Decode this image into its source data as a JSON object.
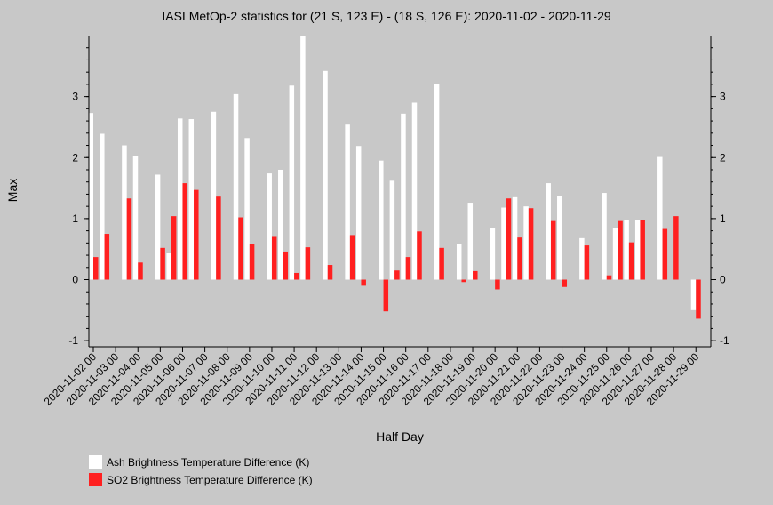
{
  "chart_data": {
    "type": "bar",
    "title": "IASI MetOp-2 statistics for (21 S, 123 E) - (18 S, 126 E): 2020-11-02 - 2020-11-29",
    "xlabel": "Half Day",
    "ylabel": "Max",
    "ylim": [
      -1.1,
      4.0
    ],
    "yticks": [
      -1,
      0,
      1,
      2,
      3
    ],
    "grid": false,
    "legend_position": "bottom-left",
    "categories": [
      "2020-11-02 00",
      "2020-11-02 12",
      "2020-11-03 00",
      "2020-11-03 12",
      "2020-11-04 00",
      "2020-11-04 12",
      "2020-11-05 00",
      "2020-11-05 12",
      "2020-11-06 00",
      "2020-11-06 12",
      "2020-11-07 00",
      "2020-11-07 12",
      "2020-11-08 00",
      "2020-11-08 12",
      "2020-11-09 00",
      "2020-11-09 12",
      "2020-11-10 00",
      "2020-11-10 12",
      "2020-11-11 00",
      "2020-11-11 12",
      "2020-11-12 00",
      "2020-11-12 12",
      "2020-11-13 00",
      "2020-11-13 12",
      "2020-11-14 00",
      "2020-11-14 12",
      "2020-11-15 00",
      "2020-11-15 12",
      "2020-11-16 00",
      "2020-11-16 12",
      "2020-11-17 00",
      "2020-11-17 12",
      "2020-11-18 00",
      "2020-11-18 12",
      "2020-11-19 00",
      "2020-11-19 12",
      "2020-11-20 00",
      "2020-11-20 12",
      "2020-11-21 00",
      "2020-11-21 12",
      "2020-11-22 00",
      "2020-11-22 12",
      "2020-11-23 00",
      "2020-11-23 12",
      "2020-11-24 00",
      "2020-11-24 12",
      "2020-11-25 00",
      "2020-11-25 12",
      "2020-11-26 00",
      "2020-11-26 12",
      "2020-11-27 00",
      "2020-11-27 12",
      "2020-11-28 00",
      "2020-11-28 12",
      "2020-11-29 00"
    ],
    "tick_labels": [
      "2020-11-02 00",
      "2020-11-03 00",
      "2020-11-04 00",
      "2020-11-05 00",
      "2020-11-06 00",
      "2020-11-07 00",
      "2020-11-08 00",
      "2020-11-09 00",
      "2020-11-10 00",
      "2020-11-11 00",
      "2020-11-12 00",
      "2020-11-13 00",
      "2020-11-14 00",
      "2020-11-15 00",
      "2020-11-16 00",
      "2020-11-17 00",
      "2020-11-18 00",
      "2020-11-19 00",
      "2020-11-20 00",
      "2020-11-21 00",
      "2020-11-22 00",
      "2020-11-23 00",
      "2020-11-24 00",
      "2020-11-25 00",
      "2020-11-26 00",
      "2020-11-27 00",
      "2020-11-28 00",
      "2020-11-29 00"
    ],
    "series": [
      {
        "name": "Ash Brightness Temperature Difference (K)",
        "color": "#ffffff",
        "values": [
          2.73,
          2.39,
          null,
          2.2,
          2.03,
          null,
          1.72,
          0.43,
          2.64,
          2.63,
          null,
          2.75,
          null,
          3.04,
          2.32,
          null,
          1.74,
          1.8,
          3.18,
          4.0,
          null,
          3.42,
          null,
          2.54,
          2.19,
          null,
          1.95,
          1.62,
          2.72,
          2.9,
          null,
          3.2,
          null,
          0.58,
          1.26,
          null,
          0.85,
          1.18,
          1.35,
          1.2,
          null,
          1.58,
          1.37,
          null,
          0.68,
          null,
          1.42,
          0.85,
          0.98,
          0.97,
          null,
          2.01,
          null,
          null,
          -0.5
        ]
      },
      {
        "name": "SO2 Brightness Temperature Difference (K)",
        "color": "#ff2020",
        "values": [
          0.37,
          0.75,
          null,
          1.33,
          0.28,
          null,
          0.52,
          1.04,
          1.58,
          1.47,
          null,
          1.36,
          null,
          1.02,
          0.59,
          null,
          0.7,
          0.46,
          0.11,
          0.53,
          null,
          0.24,
          null,
          0.73,
          -0.1,
          null,
          -0.52,
          0.15,
          0.37,
          0.79,
          null,
          0.52,
          null,
          -0.04,
          0.14,
          null,
          -0.16,
          1.33,
          0.69,
          1.17,
          null,
          0.96,
          -0.12,
          null,
          0.56,
          null,
          0.07,
          0.96,
          0.61,
          0.97,
          null,
          0.83,
          1.04,
          null,
          -0.64
        ]
      }
    ]
  }
}
